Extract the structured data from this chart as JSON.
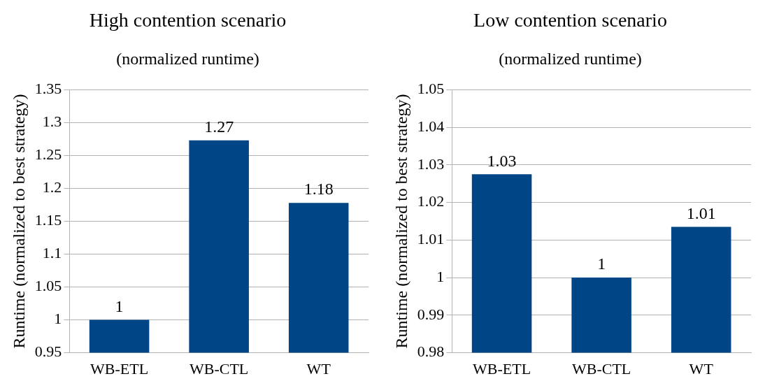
{
  "chart_data": [
    {
      "type": "bar",
      "title": "High contention scenario",
      "subtitle": "(normalized runtime)",
      "ylabel": "Runtime (normalized to best strategy)",
      "categories": [
        "WB-ETL",
        "WB-CTL",
        "WT"
      ],
      "values": [
        1,
        1.273,
        1.178
      ],
      "value_labels": [
        "1",
        "1.27",
        "1.18"
      ],
      "color": "#004586",
      "ylim": [
        0.95,
        1.35
      ],
      "yticks": [
        0.95,
        1,
        1.05,
        1.1,
        1.15,
        1.2,
        1.25,
        1.3,
        1.35
      ],
      "grid": "y",
      "legend": false
    },
    {
      "type": "bar",
      "title": "Low contention scenario",
      "subtitle": "(normalized runtime)",
      "ylabel": "Runtime (normalized to best strategy)",
      "categories": [
        "WB-ETL",
        "WB-CTL",
        "WT"
      ],
      "values": [
        1.0275,
        1,
        1.0135
      ],
      "value_labels": [
        "1.03",
        "1",
        "1.01"
      ],
      "color": "#004586",
      "ylim": [
        0.98,
        1.05
      ],
      "yticks": [
        0.98,
        0.99,
        1,
        1.01,
        1.02,
        1.03,
        1.04,
        1.05
      ],
      "grid": "y",
      "legend": false
    }
  ]
}
